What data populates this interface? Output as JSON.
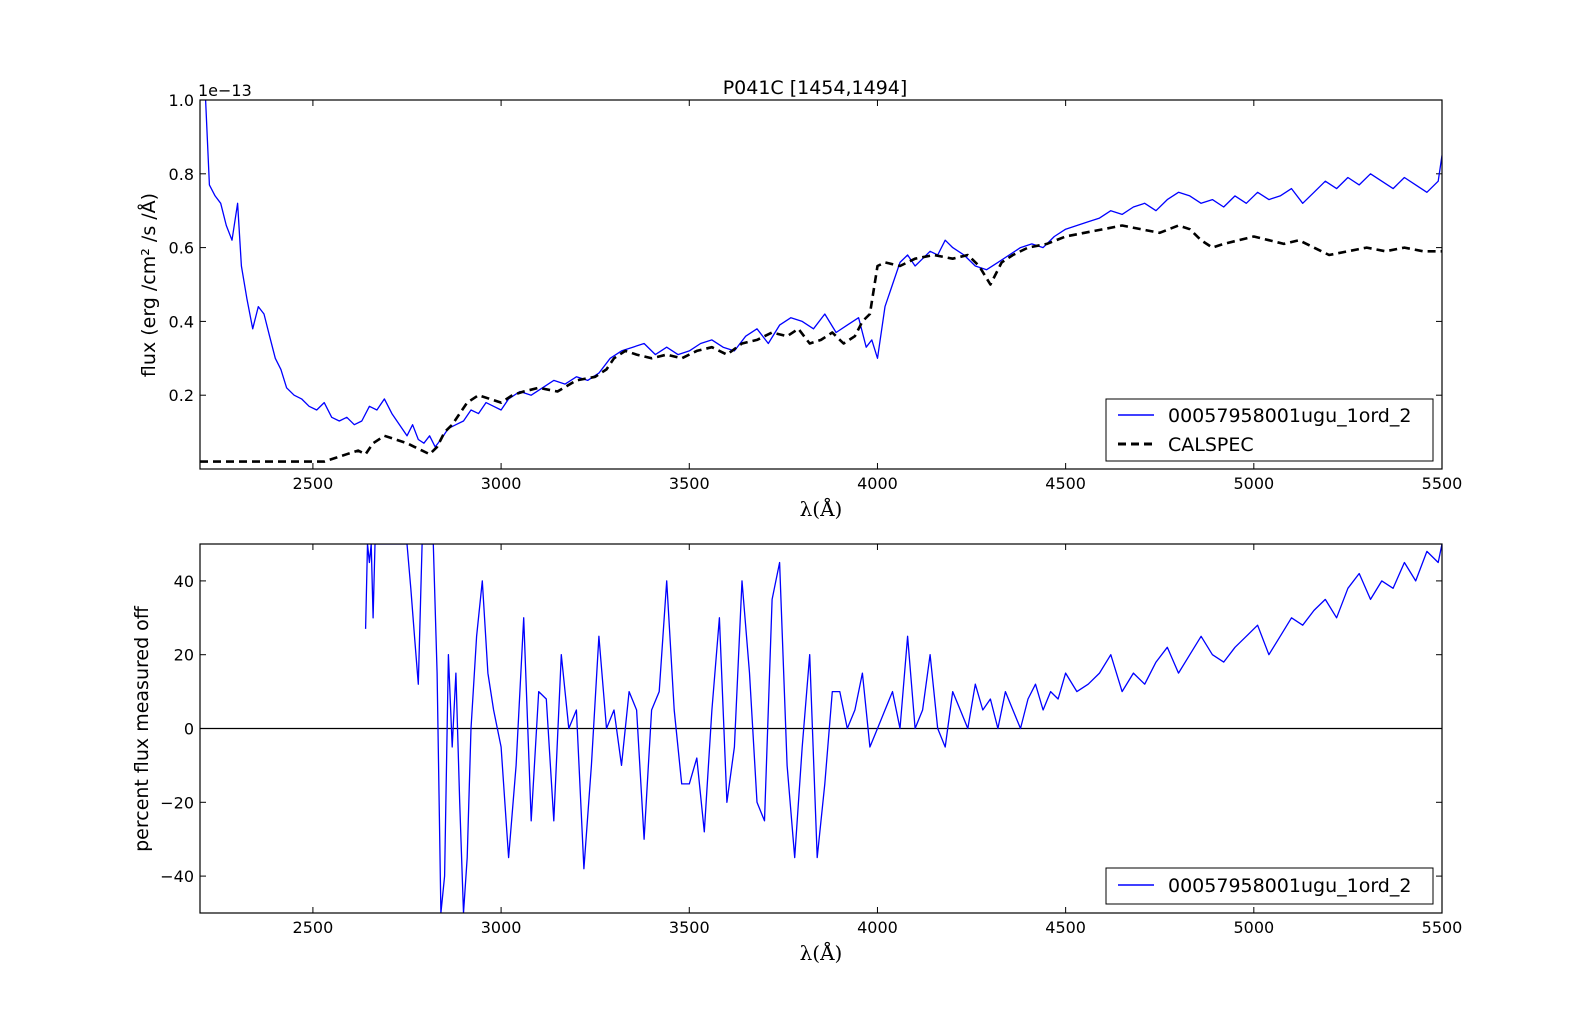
{
  "chart_data": [
    {
      "type": "line",
      "title": "P041C [1454,1494]",
      "xlabel": "λ(Å)",
      "ylabel": "flux (erg /cm² /s /Å)",
      "offset_text": "1e−13",
      "xlim": [
        2200,
        5500
      ],
      "ylim": [
        0,
        1.0
      ],
      "x_ticks": [
        2500,
        3000,
        3500,
        4000,
        4500,
        5000,
        5500
      ],
      "y_ticks": [
        0.2,
        0.4,
        0.6,
        0.8,
        1.0
      ],
      "y_tick_labels": [
        "0.2",
        "0.4",
        "0.6",
        "0.8",
        "1.0"
      ],
      "legend_position": "lower-right",
      "series": [
        {
          "name": "00057958001ugu_1ord_2",
          "style": "solid",
          "color": "#0000ff",
          "x": [
            2215,
            2225,
            2240,
            2255,
            2270,
            2285,
            2300,
            2310,
            2325,
            2340,
            2355,
            2370,
            2385,
            2400,
            2415,
            2430,
            2450,
            2470,
            2490,
            2510,
            2530,
            2550,
            2570,
            2590,
            2610,
            2630,
            2650,
            2670,
            2690,
            2710,
            2730,
            2750,
            2765,
            2780,
            2795,
            2810,
            2825,
            2840,
            2860,
            2880,
            2900,
            2920,
            2940,
            2960,
            2980,
            3000,
            3020,
            3050,
            3080,
            3110,
            3140,
            3170,
            3200,
            3230,
            3260,
            3290,
            3320,
            3350,
            3380,
            3410,
            3440,
            3470,
            3500,
            3530,
            3560,
            3590,
            3620,
            3650,
            3680,
            3710,
            3740,
            3770,
            3800,
            3830,
            3860,
            3890,
            3920,
            3950,
            3970,
            3985,
            4000,
            4020,
            4040,
            4060,
            4080,
            4100,
            4120,
            4140,
            4160,
            4180,
            4200,
            4230,
            4260,
            4290,
            4320,
            4350,
            4380,
            4410,
            4440,
            4470,
            4500,
            4530,
            4560,
            4590,
            4620,
            4650,
            4680,
            4710,
            4740,
            4770,
            4800,
            4830,
            4860,
            4890,
            4920,
            4950,
            4980,
            5010,
            5040,
            5070,
            5100,
            5130,
            5160,
            5190,
            5220,
            5250,
            5280,
            5310,
            5340,
            5370,
            5400,
            5430,
            5460,
            5490,
            5500
          ],
          "y": [
            1.0,
            0.77,
            0.74,
            0.72,
            0.66,
            0.62,
            0.72,
            0.55,
            0.46,
            0.38,
            0.44,
            0.42,
            0.36,
            0.3,
            0.27,
            0.22,
            0.2,
            0.19,
            0.17,
            0.16,
            0.18,
            0.14,
            0.13,
            0.14,
            0.12,
            0.13,
            0.17,
            0.16,
            0.19,
            0.15,
            0.12,
            0.09,
            0.12,
            0.08,
            0.07,
            0.09,
            0.06,
            0.08,
            0.11,
            0.12,
            0.13,
            0.16,
            0.15,
            0.18,
            0.17,
            0.16,
            0.19,
            0.21,
            0.2,
            0.22,
            0.24,
            0.23,
            0.25,
            0.24,
            0.26,
            0.3,
            0.32,
            0.33,
            0.34,
            0.31,
            0.33,
            0.31,
            0.32,
            0.34,
            0.35,
            0.33,
            0.32,
            0.36,
            0.38,
            0.34,
            0.39,
            0.41,
            0.4,
            0.38,
            0.42,
            0.37,
            0.39,
            0.41,
            0.33,
            0.35,
            0.3,
            0.44,
            0.5,
            0.56,
            0.58,
            0.55,
            0.57,
            0.59,
            0.58,
            0.62,
            0.6,
            0.58,
            0.55,
            0.54,
            0.56,
            0.58,
            0.6,
            0.61,
            0.6,
            0.63,
            0.65,
            0.66,
            0.67,
            0.68,
            0.7,
            0.69,
            0.71,
            0.72,
            0.7,
            0.73,
            0.75,
            0.74,
            0.72,
            0.73,
            0.71,
            0.74,
            0.72,
            0.75,
            0.73,
            0.74,
            0.76,
            0.72,
            0.75,
            0.78,
            0.76,
            0.79,
            0.77,
            0.8,
            0.78,
            0.76,
            0.79,
            0.77,
            0.75,
            0.78,
            0.85
          ]
        },
        {
          "name": "CALSPEC",
          "style": "dashed",
          "color": "#000000",
          "x": [
            2200,
            2250,
            2300,
            2350,
            2400,
            2450,
            2500,
            2530,
            2560,
            2590,
            2620,
            2640,
            2660,
            2690,
            2720,
            2750,
            2770,
            2790,
            2810,
            2830,
            2850,
            2870,
            2890,
            2910,
            2940,
            2970,
            3000,
            3030,
            3060,
            3100,
            3150,
            3200,
            3250,
            3280,
            3300,
            3330,
            3360,
            3400,
            3440,
            3480,
            3520,
            3560,
            3600,
            3640,
            3680,
            3720,
            3760,
            3790,
            3820,
            3850,
            3880,
            3910,
            3940,
            3960,
            3980,
            4000,
            4020,
            4060,
            4100,
            4150,
            4200,
            4240,
            4270,
            4300,
            4330,
            4360,
            4400,
            4450,
            4500,
            4550,
            4600,
            4650,
            4700,
            4750,
            4800,
            4830,
            4860,
            4890,
            4920,
            4960,
            5000,
            5040,
            5080,
            5120,
            5160,
            5200,
            5250,
            5300,
            5350,
            5400,
            5450,
            5500
          ],
          "y": [
            0.02,
            0.02,
            0.02,
            0.02,
            0.02,
            0.02,
            0.02,
            0.02,
            0.03,
            0.04,
            0.05,
            0.04,
            0.07,
            0.09,
            0.08,
            0.07,
            0.06,
            0.05,
            0.04,
            0.06,
            0.1,
            0.12,
            0.15,
            0.18,
            0.2,
            0.19,
            0.18,
            0.2,
            0.21,
            0.22,
            0.21,
            0.24,
            0.25,
            0.27,
            0.3,
            0.32,
            0.31,
            0.3,
            0.31,
            0.3,
            0.32,
            0.33,
            0.31,
            0.34,
            0.35,
            0.37,
            0.36,
            0.38,
            0.34,
            0.35,
            0.37,
            0.34,
            0.36,
            0.4,
            0.42,
            0.55,
            0.56,
            0.55,
            0.57,
            0.58,
            0.57,
            0.58,
            0.55,
            0.5,
            0.56,
            0.58,
            0.6,
            0.61,
            0.63,
            0.64,
            0.65,
            0.66,
            0.65,
            0.64,
            0.66,
            0.65,
            0.62,
            0.6,
            0.61,
            0.62,
            0.63,
            0.62,
            0.61,
            0.62,
            0.6,
            0.58,
            0.59,
            0.6,
            0.59,
            0.6,
            0.59,
            0.59
          ]
        }
      ]
    },
    {
      "type": "line",
      "title": "",
      "xlabel": "λ(Å)",
      "ylabel": "percent flux measured off",
      "xlim": [
        2200,
        5500
      ],
      "ylim": [
        -50,
        50
      ],
      "x_ticks": [
        2500,
        3000,
        3500,
        4000,
        4500,
        5000,
        5500
      ],
      "y_ticks": [
        -40,
        -20,
        0,
        20,
        40
      ],
      "y_tick_labels": [
        "−40",
        "−20",
        "0",
        "20",
        "40"
      ],
      "reference_line_y": 0,
      "legend_position": "lower-right",
      "series": [
        {
          "name": "00057958001ugu_1ord_2",
          "style": "solid",
          "color": "#0000ff",
          "x": [
            2640,
            2645,
            2650,
            2655,
            2660,
            2665,
            2670,
            2750,
            2760,
            2770,
            2780,
            2790,
            2800,
            2810,
            2820,
            2830,
            2840,
            2850,
            2860,
            2870,
            2880,
            2890,
            2900,
            2910,
            2920,
            2935,
            2950,
            2965,
            2980,
            3000,
            3020,
            3040,
            3060,
            3080,
            3100,
            3120,
            3140,
            3160,
            3180,
            3200,
            3220,
            3240,
            3260,
            3280,
            3300,
            3320,
            3340,
            3360,
            3380,
            3400,
            3420,
            3440,
            3460,
            3480,
            3500,
            3520,
            3540,
            3560,
            3580,
            3600,
            3620,
            3640,
            3660,
            3680,
            3700,
            3720,
            3740,
            3760,
            3780,
            3800,
            3820,
            3840,
            3860,
            3880,
            3900,
            3920,
            3940,
            3960,
            3980,
            4000,
            4020,
            4040,
            4060,
            4080,
            4100,
            4120,
            4140,
            4160,
            4180,
            4200,
            4220,
            4240,
            4260,
            4280,
            4300,
            4320,
            4340,
            4360,
            4380,
            4400,
            4420,
            4440,
            4460,
            4480,
            4500,
            4530,
            4560,
            4590,
            4620,
            4650,
            4680,
            4710,
            4740,
            4770,
            4800,
            4830,
            4860,
            4890,
            4920,
            4950,
            4980,
            5010,
            5040,
            5070,
            5100,
            5130,
            5160,
            5190,
            5220,
            5250,
            5280,
            5310,
            5340,
            5370,
            5400,
            5430,
            5460,
            5490,
            5500
          ],
          "y": [
            27,
            50,
            45,
            50,
            30,
            50,
            50,
            50,
            38,
            25,
            12,
            50,
            50,
            50,
            50,
            15,
            -50,
            -40,
            20,
            -5,
            15,
            -20,
            -50,
            -35,
            0,
            25,
            40,
            15,
            5,
            -5,
            -35,
            -10,
            30,
            -25,
            10,
            8,
            -25,
            20,
            0,
            5,
            -38,
            -10,
            25,
            0,
            5,
            -10,
            10,
            5,
            -30,
            5,
            10,
            40,
            5,
            -15,
            -15,
            -8,
            -28,
            5,
            30,
            -20,
            -5,
            40,
            15,
            -20,
            -25,
            35,
            45,
            -10,
            -35,
            -5,
            20,
            -35,
            -15,
            10,
            10,
            0,
            5,
            15,
            -5,
            0,
            5,
            10,
            0,
            25,
            0,
            5,
            20,
            0,
            -5,
            10,
            5,
            0,
            12,
            5,
            8,
            0,
            10,
            5,
            0,
            8,
            12,
            5,
            10,
            8,
            15,
            10,
            12,
            15,
            20,
            10,
            15,
            12,
            18,
            22,
            15,
            20,
            25,
            20,
            18,
            22,
            25,
            28,
            20,
            25,
            30,
            28,
            32,
            35,
            30,
            38,
            42,
            35,
            40,
            38,
            45,
            40,
            48,
            45,
            50
          ]
        }
      ]
    }
  ]
}
